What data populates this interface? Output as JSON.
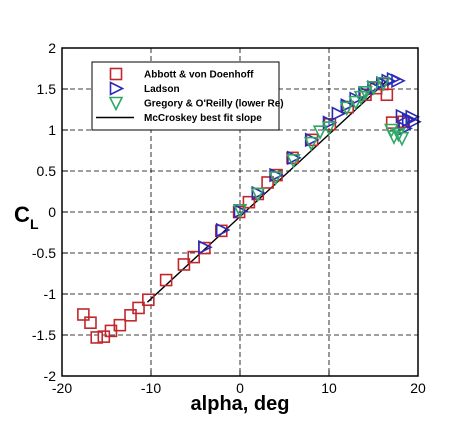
{
  "chart_data": {
    "type": "scatter",
    "xlabel": "alpha, deg",
    "ylabel": "C",
    "ylabel_subscript": "L",
    "xlim": [
      -20,
      20
    ],
    "ylim": [
      -2,
      2
    ],
    "x_ticks": [
      -20,
      -10,
      0,
      10,
      20
    ],
    "y_ticks": [
      -2,
      -1.5,
      -1,
      -0.5,
      0,
      0.5,
      1,
      1.5,
      2
    ],
    "x_tick_labels": [
      "-20",
      "-10",
      "0",
      "10",
      "20"
    ],
    "y_tick_labels": [
      "-2",
      "-1.5",
      "-1",
      "-0.5",
      "0",
      "0.5",
      "1",
      "1.5",
      "2"
    ],
    "grid": true,
    "legend_position": "top-left",
    "series": [
      {
        "name": "Abbott & von Doenhoff",
        "marker": "square",
        "color": "#c0282d",
        "points": [
          [
            -17.6,
            -1.25
          ],
          [
            -16.8,
            -1.35
          ],
          [
            -16.1,
            -1.53
          ],
          [
            -15.3,
            -1.52
          ],
          [
            -14.5,
            -1.45
          ],
          [
            -13.5,
            -1.38
          ],
          [
            -12.3,
            -1.26
          ],
          [
            -11.4,
            -1.17
          ],
          [
            -10.3,
            -1.07
          ],
          [
            -8.3,
            -0.83
          ],
          [
            -6.3,
            -0.64
          ],
          [
            -5.2,
            -0.55
          ],
          [
            -4.0,
            -0.44
          ],
          [
            -2.1,
            -0.23
          ],
          [
            -0.1,
            0.0
          ],
          [
            1.0,
            0.12
          ],
          [
            2.0,
            0.22
          ],
          [
            3.1,
            0.36
          ],
          [
            4.1,
            0.45
          ],
          [
            5.9,
            0.66
          ],
          [
            8.1,
            0.88
          ],
          [
            10.1,
            1.07
          ],
          [
            12.1,
            1.28
          ],
          [
            14.1,
            1.43
          ],
          [
            15.3,
            1.51
          ],
          [
            16.0,
            1.56
          ],
          [
            16.5,
            1.43
          ],
          [
            17.1,
            1.09
          ],
          [
            18.4,
            1.1
          ]
        ]
      },
      {
        "name": "Ladson",
        "marker": "triangle-right",
        "color": "#2a2ab8",
        "points": [
          [
            -4.0,
            -0.43
          ],
          [
            -2.0,
            -0.22
          ],
          [
            0.0,
            0.01
          ],
          [
            2.0,
            0.23
          ],
          [
            4.0,
            0.45
          ],
          [
            6.0,
            0.66
          ],
          [
            8.0,
            0.88
          ],
          [
            10.0,
            1.09
          ],
          [
            11.0,
            1.2
          ],
          [
            12.0,
            1.3
          ],
          [
            13.0,
            1.38
          ],
          [
            14.0,
            1.45
          ],
          [
            15.0,
            1.52
          ],
          [
            16.0,
            1.57
          ],
          [
            16.6,
            1.6
          ],
          [
            17.2,
            1.62
          ],
          [
            17.7,
            1.6
          ],
          [
            18.2,
            1.17
          ],
          [
            18.9,
            1.12
          ],
          [
            19.3,
            1.16
          ],
          [
            18.5,
            1.02
          ],
          [
            19.5,
            1.1
          ]
        ]
      },
      {
        "name": "Gregory & O'Reilly (lower Re)",
        "marker": "triangle-down",
        "color": "#2fa866",
        "points": [
          [
            0.0,
            0.02
          ],
          [
            2.0,
            0.22
          ],
          [
            4.0,
            0.42
          ],
          [
            6.0,
            0.63
          ],
          [
            8.0,
            0.84
          ],
          [
            9.0,
            0.98
          ],
          [
            10.0,
            1.03
          ],
          [
            12.0,
            1.27
          ],
          [
            13.0,
            1.34
          ],
          [
            13.6,
            1.4
          ],
          [
            14.1,
            1.46
          ],
          [
            15.0,
            1.52
          ],
          [
            16.1,
            1.57
          ],
          [
            17.0,
            1.0
          ],
          [
            17.3,
            0.92
          ],
          [
            17.8,
            0.95
          ],
          [
            18.2,
            0.9
          ]
        ]
      },
      {
        "name": "McCroskey best fit slope",
        "marker": "line",
        "color": "#000000",
        "points": [
          [
            -10.4,
            -1.1
          ],
          [
            16.5,
            1.6
          ]
        ]
      }
    ]
  }
}
